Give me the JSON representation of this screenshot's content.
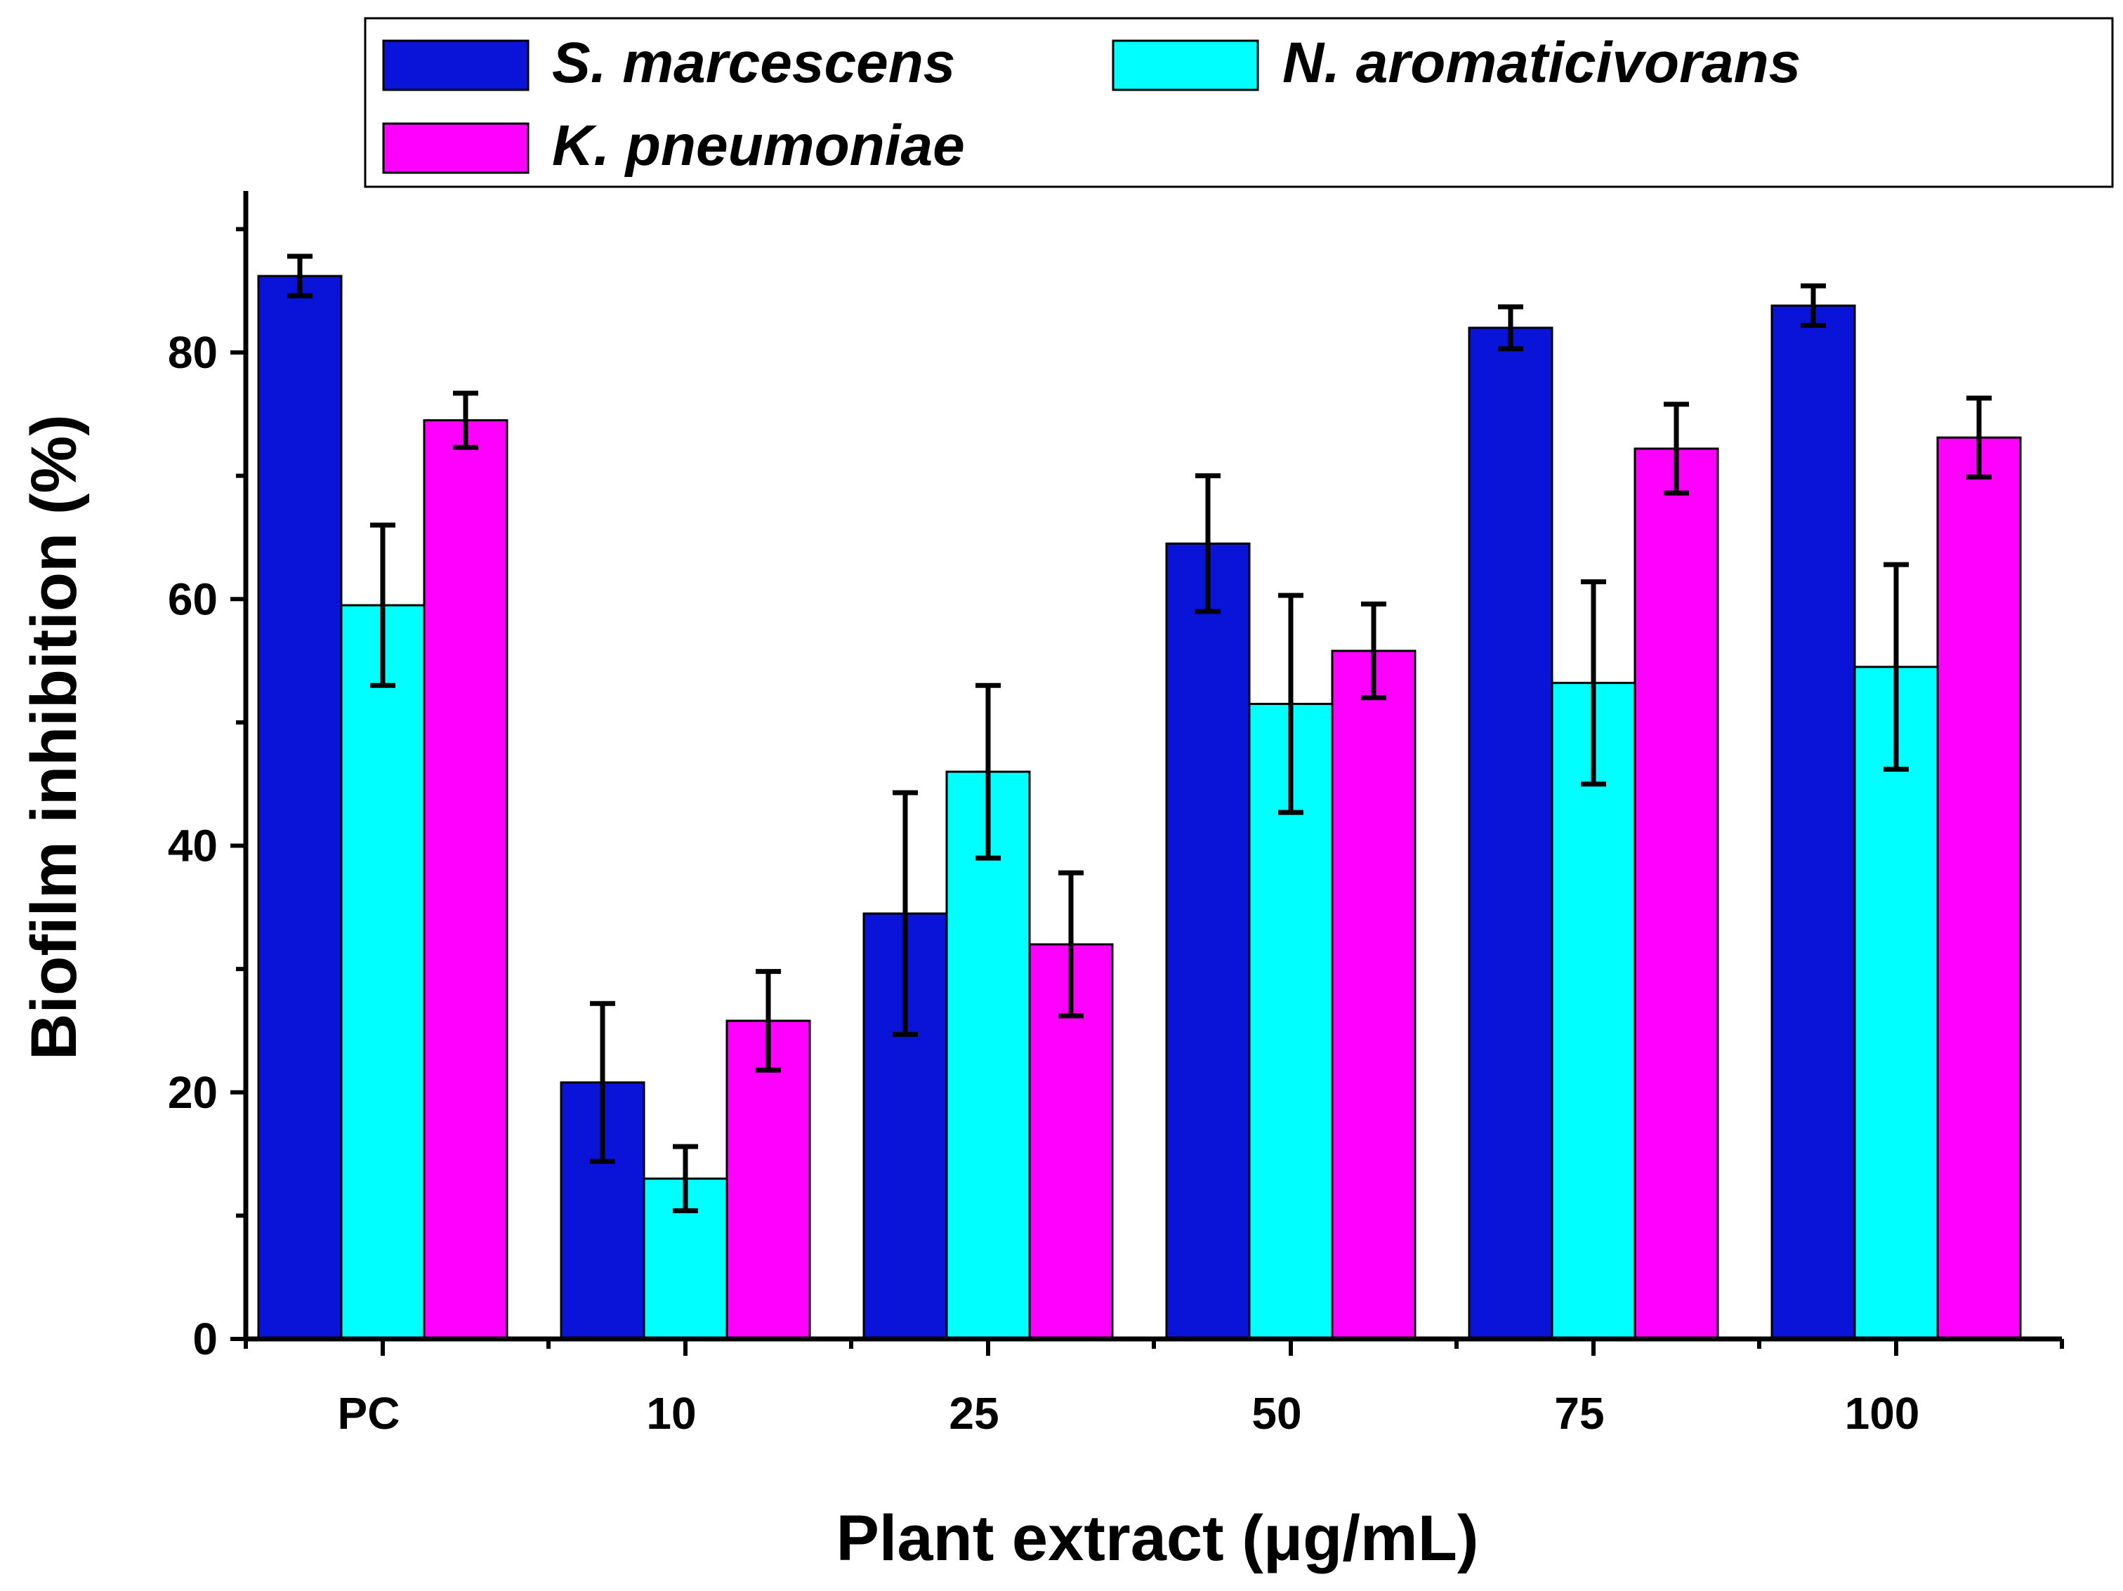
{
  "chart_data": {
    "type": "bar",
    "title": "",
    "xlabel": "Plant extract (μg/mL)",
    "ylabel": "Biofilm inhibition (%)",
    "ylim": [
      0,
      90
    ],
    "yticks": [
      0,
      20,
      40,
      60,
      80
    ],
    "categories": [
      "PC",
      "10",
      "25",
      "50",
      "75",
      "100"
    ],
    "legend_position": "top",
    "series": [
      {
        "name": "S. marcescens",
        "color": "#0a14d8",
        "values": [
          86.2,
          20.8,
          34.5,
          64.5,
          82.0,
          83.8
        ],
        "errors": [
          1.6,
          6.4,
          9.8,
          5.5,
          1.7,
          1.6
        ]
      },
      {
        "name": "N. aromaticivorans",
        "color": "#00ffff",
        "values": [
          59.5,
          13.0,
          46.0,
          51.5,
          53.2,
          54.5
        ],
        "errors": [
          6.5,
          2.6,
          7.0,
          8.8,
          8.2,
          8.3
        ]
      },
      {
        "name": "K. pneumoniae",
        "color": "#ff00ff",
        "values": [
          74.5,
          25.8,
          32.0,
          55.8,
          72.2,
          73.1
        ],
        "errors": [
          2.2,
          4.0,
          5.8,
          3.8,
          3.6,
          3.2
        ]
      }
    ]
  }
}
